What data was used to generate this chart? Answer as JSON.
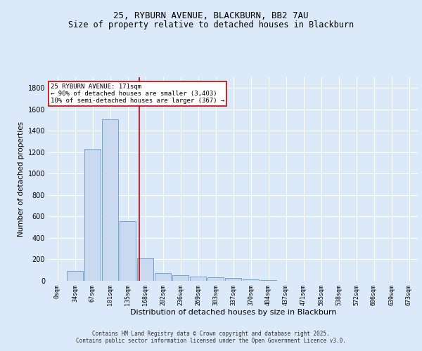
{
  "title": "25, RYBURN AVENUE, BLACKBURN, BB2 7AU",
  "subtitle": "Size of property relative to detached houses in Blackburn",
  "xlabel": "Distribution of detached houses by size in Blackburn",
  "ylabel": "Number of detached properties",
  "footer_line1": "Contains HM Land Registry data © Crown copyright and database right 2025.",
  "footer_line2": "Contains public sector information licensed under the Open Government Licence v3.0.",
  "bar_labels": [
    "0sqm",
    "34sqm",
    "67sqm",
    "101sqm",
    "135sqm",
    "168sqm",
    "202sqm",
    "236sqm",
    "269sqm",
    "303sqm",
    "337sqm",
    "370sqm",
    "404sqm",
    "437sqm",
    "471sqm",
    "505sqm",
    "538sqm",
    "572sqm",
    "606sqm",
    "639sqm",
    "673sqm"
  ],
  "bar_values": [
    0,
    90,
    1230,
    1510,
    560,
    210,
    70,
    50,
    40,
    30,
    25,
    10,
    5,
    0,
    0,
    0,
    0,
    0,
    0,
    0,
    0
  ],
  "bar_color": "#c9d9f0",
  "bar_edge_color": "#6699cc",
  "vline_x": 4.67,
  "vline_color": "#cc0000",
  "annotation_text": "25 RYBURN AVENUE: 171sqm\n← 90% of detached houses are smaller (3,403)\n10% of semi-detached houses are larger (367) →",
  "annotation_box_color": "#cc0000",
  "annotation_text_color": "#000000",
  "ylim": [
    0,
    1900
  ],
  "yticks": [
    0,
    200,
    400,
    600,
    800,
    1000,
    1200,
    1400,
    1600,
    1800
  ],
  "bg_color": "#dce9f8",
  "plot_bg_color": "#dce9f8",
  "grid_color": "#ffffff",
  "title_fontsize": 9,
  "subtitle_fontsize": 8.5,
  "ylabel_fontsize": 7.5,
  "xlabel_fontsize": 8,
  "tick_fontsize": 7,
  "annotation_fontsize": 6.5,
  "footer_fontsize": 5.5
}
